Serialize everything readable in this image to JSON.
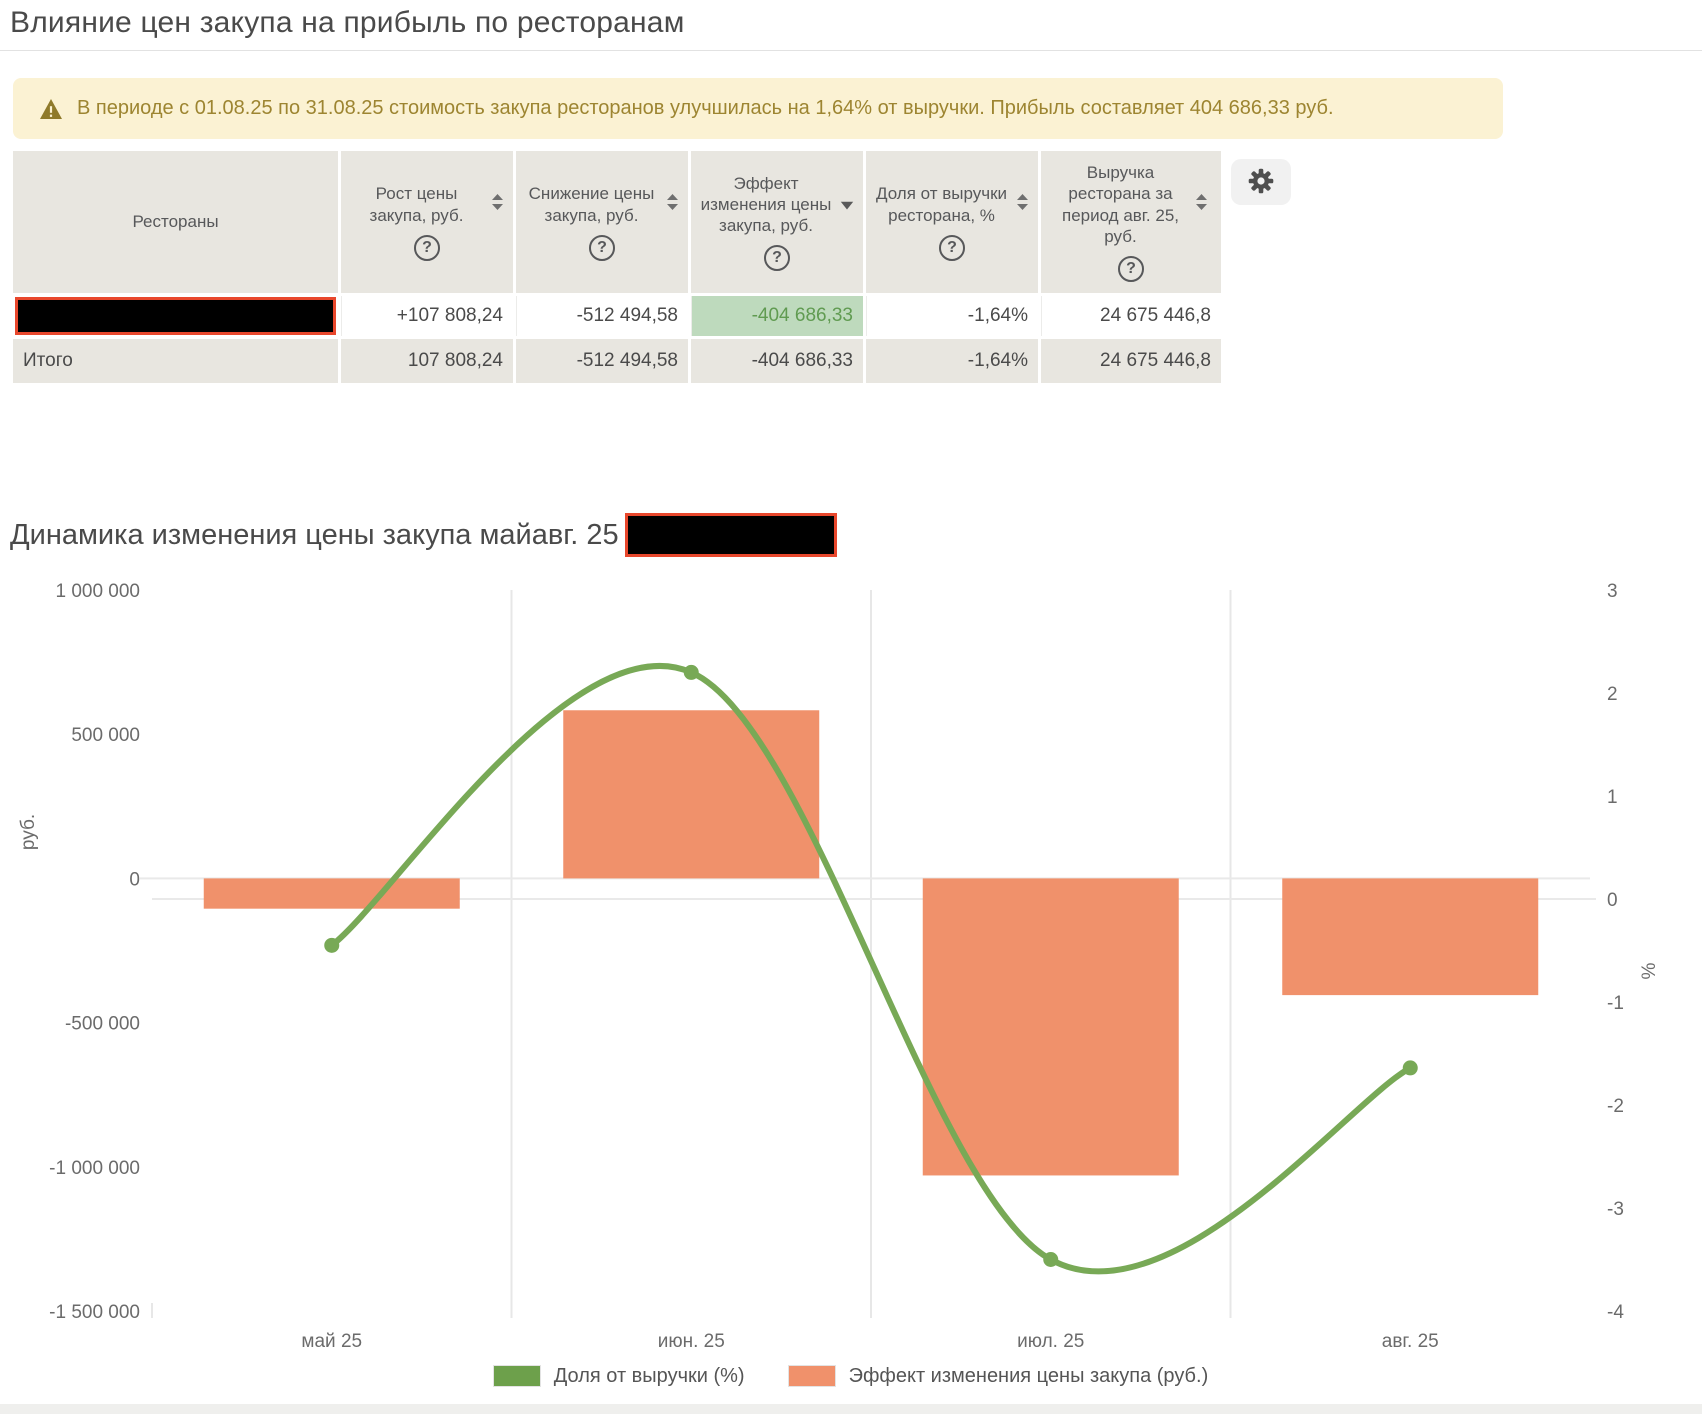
{
  "page": {
    "title": "Влияние цен закупа на прибыль по ресторанам"
  },
  "banner": {
    "text": "В периоде с 01.08.25 по 31.08.25 стоимость закупа ресторанов улучшилась на 1,64% от выручки. Прибыль составляет 404 686,33 руб.",
    "bg": "#FBF2D3",
    "text_color": "#9D8531"
  },
  "icons": {
    "help": "?"
  },
  "table": {
    "columns": [
      {
        "label": "Рестораны",
        "sortable": false,
        "help": false
      },
      {
        "label": "Рост цены закупа, руб.",
        "sortable": true,
        "sort": "none",
        "help": true
      },
      {
        "label": "Снижение цены закупа, руб.",
        "sortable": true,
        "sort": "none",
        "help": true
      },
      {
        "label": "Эффект изменения цены закупа, руб.",
        "sortable": true,
        "sort": "desc",
        "help": true
      },
      {
        "label": "Доля от выручки ресторана, %",
        "sortable": true,
        "sort": "none",
        "help": true
      },
      {
        "label": "Выручка ресторана за период авг. 25, руб.",
        "sortable": true,
        "sort": "none",
        "help": true
      }
    ],
    "rows": [
      {
        "restaurant_redacted": true,
        "values": [
          "+107 808,24",
          "-512 494,58",
          "-404 686,33",
          "-1,64%",
          "24 675 446,8"
        ],
        "highlighted_value": "-404 686,33"
      }
    ],
    "total_row": {
      "label": "Итого",
      "values": [
        "107 808,24",
        "-512 494,58",
        "-404 686,33",
        "-1,64%",
        "24 675 446,8"
      ]
    }
  },
  "section2": {
    "title": "Динамика изменения цены закупа майавг. 25",
    "suffix_redacted": true
  },
  "chart_data": {
    "type": "combo",
    "categories": [
      "май 25",
      "июн. 25",
      "июл. 25",
      "авг. 25"
    ],
    "series": [
      {
        "name": "Эффект изменения цены закупа (руб.)",
        "type": "bar",
        "axis": "left",
        "color": "#F0916B",
        "values": [
          -105000,
          583000,
          -1030000,
          -404686
        ]
      },
      {
        "name": "Доля от выручки (%)",
        "type": "line",
        "axis": "right",
        "color": "#78A956",
        "values": [
          -0.45,
          2.2,
          -3.5,
          -1.64
        ]
      }
    ],
    "left_axis": {
      "title": "руб.",
      "min": -1500000,
      "max": 1000000,
      "ticks": [
        1000000,
        500000,
        0,
        -500000,
        -1000000,
        -1500000
      ],
      "tick_labels": [
        "1 000 000",
        "500 000",
        "0",
        "-500 000",
        "-1 000 000",
        "-1 500 000"
      ]
    },
    "right_axis": {
      "title": "%",
      "min": -4,
      "max": 3,
      "ticks": [
        3,
        2,
        1,
        0,
        -1,
        -2,
        -3,
        -4
      ]
    },
    "legend": [
      {
        "label": "Доля от выручки (%)",
        "color": "#6DA04B"
      },
      {
        "label": "Эффект изменения цены закупа (руб.)",
        "color": "#F0916B"
      }
    ],
    "layout": {
      "grid_vertical": true,
      "zero_line_left": true,
      "zero_line_right": true,
      "legend_position": "bottom"
    }
  }
}
